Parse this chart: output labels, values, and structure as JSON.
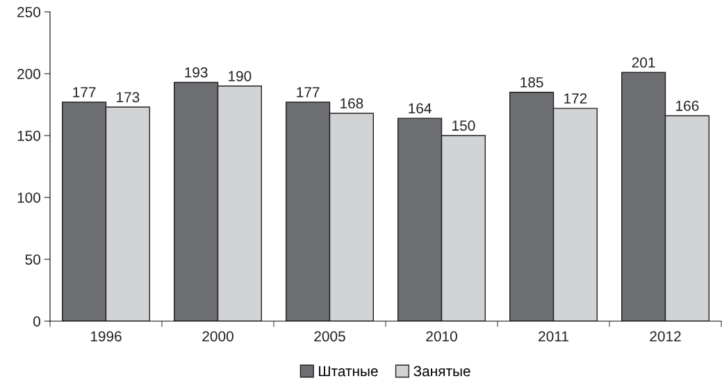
{
  "chart_data": {
    "type": "bar",
    "categories": [
      "1996",
      "2000",
      "2005",
      "2010",
      "2011",
      "2012"
    ],
    "series": [
      {
        "name": "Штатные",
        "color": "#6d6e71",
        "values": [
          177,
          193,
          177,
          164,
          185,
          201
        ]
      },
      {
        "name": "Занятые",
        "color": "#d1d3d4",
        "values": [
          173,
          190,
          168,
          150,
          172,
          166
        ]
      }
    ],
    "ylim": [
      0,
      250
    ],
    "yticks": [
      0,
      50,
      100,
      150,
      200,
      250
    ],
    "data_labels": true,
    "legend": "bottom",
    "grid": false
  }
}
